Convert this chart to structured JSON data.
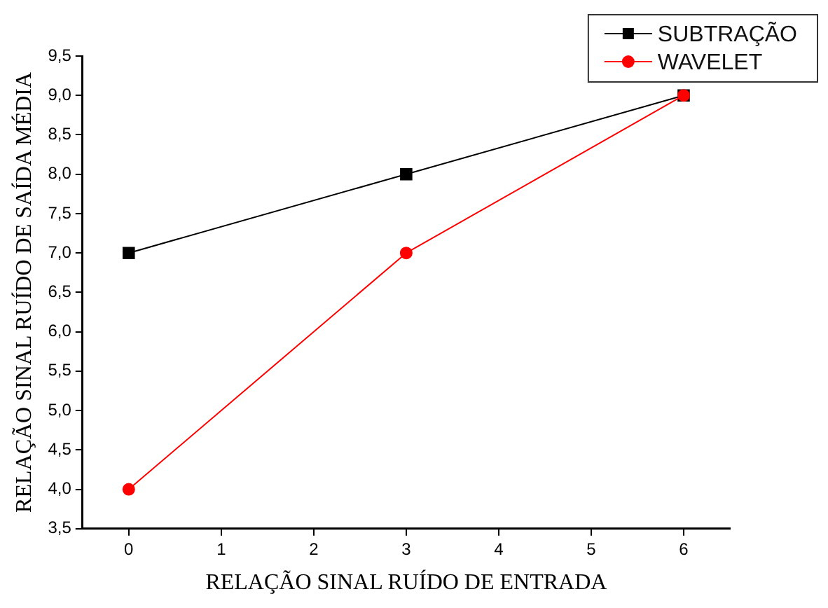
{
  "chart_data": {
    "type": "line",
    "xlabel": "RELAÇÃO SINAL RUÍDO DE ENTRADA",
    "ylabel": "RELAÇÃO SINAL RUÍDO DE SAÍDA MÉDIA",
    "x": [
      0,
      3,
      6
    ],
    "series": [
      {
        "name": "SUBTRAÇÃO",
        "color": "#000000",
        "marker": "square",
        "values": [
          7,
          8,
          9
        ]
      },
      {
        "name": "WAVELET",
        "color": "#ff0000",
        "marker": "circle",
        "values": [
          4,
          7,
          9
        ]
      }
    ],
    "xlim": [
      -0.5,
      6.5
    ],
    "xticks": [
      0,
      1,
      2,
      3,
      4,
      5,
      6
    ],
    "ylim": [
      3.5,
      9.5
    ],
    "yticks": [
      {
        "value": 3.5,
        "label": "3,5"
      },
      {
        "value": 4,
        "label": "4,0"
      },
      {
        "value": 4.5,
        "label": "4,5"
      },
      {
        "value": 5,
        "label": "5,0"
      },
      {
        "value": 5.5,
        "label": "5,5"
      },
      {
        "value": 6,
        "label": "6,0"
      },
      {
        "value": 6.5,
        "label": "6,5"
      },
      {
        "value": 7,
        "label": "7,0"
      },
      {
        "value": 7.5,
        "label": "7,5"
      },
      {
        "value": 8,
        "label": "8,0"
      },
      {
        "value": 8.5,
        "label": "8,5"
      },
      {
        "value": 9,
        "label": "9,0"
      },
      {
        "value": 9.5,
        "label": "9,5"
      }
    ],
    "grid": false,
    "legend": "top right",
    "line_style": "solid"
  }
}
